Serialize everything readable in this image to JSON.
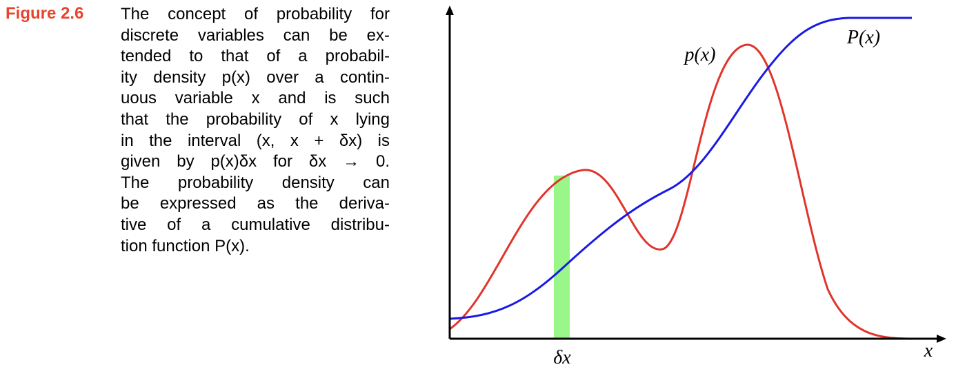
{
  "figure": {
    "label": "Figure 2.6",
    "caption_lines": [
      "The concept of probability for",
      "discrete variables can be ex-",
      "tended to that of a probabil-",
      "ity density p(x) over a contin-",
      "uous variable x and is such",
      "that the probability of x lying",
      "in the interval (x, x + δx) is",
      "given by p(x)δx for δx → 0.",
      "The probability density can",
      "be expressed as the deriva-",
      "tive of a cumulative distribu-",
      "tion function P(x)."
    ]
  },
  "diagram": {
    "density_label": "p(x)",
    "cdf_label": "P(x)",
    "interval_label": "δx",
    "axis_label": "x"
  }
}
